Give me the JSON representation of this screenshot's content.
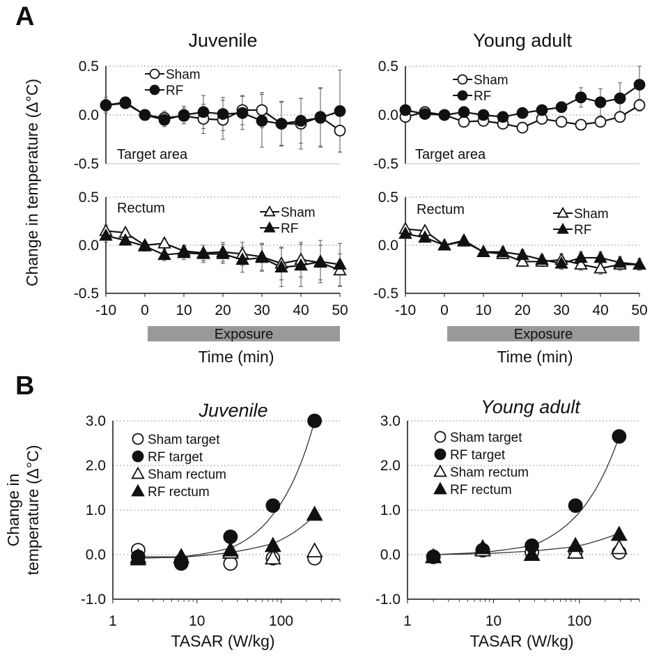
{
  "panel_labels": {
    "a": "A",
    "b": "B"
  },
  "shared": {
    "ylabel_a": "Change in temperature (Δ°C)",
    "ylabel_b_line1": "Change in",
    "ylabel_b_line2": "temperature (Δ°C)",
    "xlabel_a": "Time (min)",
    "xlabel_b": "TASAR (W/kg)",
    "exposure_label": "Exposure"
  },
  "chart_data": [
    {
      "id": "a-juvenile-target",
      "type": "line",
      "title": "Juvenile",
      "annotation": "Target area",
      "xlim": [
        -10,
        50
      ],
      "ylim": [
        -0.5,
        0.5
      ],
      "yticks": [
        "0.5",
        "0.0",
        "-0.5"
      ],
      "x": [
        -10,
        -5,
        0,
        5,
        10,
        15,
        20,
        25,
        30,
        35,
        40,
        45,
        50
      ],
      "series": [
        {
          "name": "Sham",
          "marker": "circle-open",
          "values": [
            0.1,
            0.13,
            0.0,
            -0.03,
            -0.01,
            -0.04,
            -0.05,
            0.05,
            0.05,
            -0.09,
            -0.09,
            -0.02,
            -0.16
          ],
          "errors": [
            0.08,
            0.05,
            0.05,
            0.07,
            0.08,
            0.15,
            0.2,
            0.15,
            0.18,
            0.22,
            0.26,
            0.3,
            0.22
          ]
        },
        {
          "name": "RF",
          "marker": "circle-filled",
          "values": [
            0.1,
            0.12,
            0.0,
            -0.05,
            0.0,
            0.03,
            0.01,
            0.02,
            -0.06,
            -0.09,
            -0.06,
            -0.03,
            0.04
          ],
          "errors": [
            0.06,
            0.04,
            0.04,
            0.07,
            0.09,
            0.17,
            0.17,
            0.17,
            0.27,
            0.23,
            0.23,
            0.3,
            0.42
          ]
        }
      ]
    },
    {
      "id": "a-young-target",
      "type": "line",
      "title": "Young adult",
      "annotation": "Target area",
      "xlim": [
        -10,
        50
      ],
      "ylim": [
        -0.5,
        0.5
      ],
      "yticks": [
        "0.5",
        "0.0",
        "-0.5"
      ],
      "x": [
        -10,
        -5,
        0,
        5,
        10,
        15,
        20,
        25,
        30,
        35,
        40,
        45,
        50
      ],
      "series": [
        {
          "name": "Sham",
          "marker": "circle-open",
          "values": [
            -0.02,
            0.03,
            0.0,
            -0.07,
            -0.06,
            -0.09,
            -0.13,
            -0.04,
            -0.07,
            -0.1,
            -0.07,
            -0.02,
            0.1
          ],
          "errors": [
            0.04,
            0.03,
            0.03,
            0.04,
            0.04,
            0.04,
            0.04,
            0.04,
            0.04,
            0.04,
            0.04,
            0.05,
            0.06
          ]
        },
        {
          "name": "RF",
          "marker": "circle-filled",
          "values": [
            0.05,
            0.01,
            0.0,
            0.03,
            0.0,
            -0.02,
            0.02,
            0.05,
            0.08,
            0.18,
            0.13,
            0.17,
            0.31
          ],
          "errors": [
            0.04,
            0.03,
            0.03,
            0.04,
            0.04,
            0.04,
            0.04,
            0.05,
            0.05,
            0.1,
            0.14,
            0.16,
            0.19
          ]
        }
      ]
    },
    {
      "id": "a-juvenile-rectum",
      "type": "line",
      "annotation": "Rectum",
      "xlim": [
        -10,
        50
      ],
      "ylim": [
        -0.5,
        0.5
      ],
      "yticks": [
        "0.5",
        "0.0",
        "-0.5"
      ],
      "xticks": [
        "-10",
        "0",
        "10",
        "20",
        "30",
        "40",
        "50"
      ],
      "x": [
        -10,
        -5,
        0,
        5,
        10,
        15,
        20,
        25,
        30,
        35,
        40,
        45,
        50
      ],
      "series": [
        {
          "name": "Sham",
          "marker": "triangle-open",
          "values": [
            0.15,
            0.13,
            0.0,
            0.02,
            -0.06,
            -0.08,
            -0.07,
            -0.09,
            -0.12,
            -0.19,
            -0.15,
            -0.18,
            -0.26
          ],
          "errors": [
            0.06,
            0.04,
            0.04,
            0.05,
            0.06,
            0.08,
            0.1,
            0.12,
            0.14,
            0.17,
            0.18,
            0.18,
            0.17
          ]
        },
        {
          "name": "RF",
          "marker": "triangle-filled",
          "values": [
            0.1,
            0.05,
            -0.01,
            -0.1,
            -0.08,
            -0.09,
            -0.09,
            -0.15,
            -0.13,
            -0.23,
            -0.21,
            -0.17,
            -0.2
          ],
          "errors": [
            0.07,
            0.05,
            0.05,
            0.06,
            0.07,
            0.09,
            0.1,
            0.13,
            0.14,
            0.2,
            0.22,
            0.22,
            0.22
          ]
        }
      ]
    },
    {
      "id": "a-young-rectum",
      "type": "line",
      "annotation": "Rectum",
      "xlim": [
        -10,
        50
      ],
      "ylim": [
        -0.5,
        0.5
      ],
      "yticks": [
        "0.5",
        "0.0",
        "-0.5"
      ],
      "xticks": [
        "-10",
        "0",
        "10",
        "20",
        "30",
        "40",
        "50"
      ],
      "x": [
        -10,
        -5,
        0,
        5,
        10,
        15,
        20,
        25,
        30,
        35,
        40,
        45,
        50
      ],
      "series": [
        {
          "name": "Sham",
          "marker": "triangle-open",
          "values": [
            0.17,
            0.15,
            0.0,
            0.05,
            -0.07,
            -0.09,
            -0.17,
            -0.17,
            -0.15,
            -0.2,
            -0.24,
            -0.2,
            -0.2
          ],
          "errors": [
            0.04,
            0.04,
            0.03,
            0.04,
            0.04,
            0.05,
            0.05,
            0.05,
            0.06,
            0.06,
            0.06,
            0.06,
            0.06
          ]
        },
        {
          "name": "RF",
          "marker": "triangle-filled",
          "values": [
            0.12,
            0.08,
            0.0,
            0.04,
            -0.07,
            -0.07,
            -0.1,
            -0.15,
            -0.19,
            -0.13,
            -0.13,
            -0.18,
            -0.2
          ],
          "errors": [
            0.04,
            0.04,
            0.03,
            0.04,
            0.04,
            0.05,
            0.05,
            0.05,
            0.06,
            0.06,
            0.06,
            0.06,
            0.06
          ]
        }
      ]
    },
    {
      "id": "b-juvenile",
      "type": "scatter",
      "title": "Juvenile",
      "xscale": "log",
      "xlim": [
        1,
        500
      ],
      "ylim": [
        -1.0,
        3.0
      ],
      "yticks": [
        "3.0",
        "2.0",
        "1.0",
        "0.0",
        "-1.0"
      ],
      "xticks": [
        "1",
        "10",
        "100"
      ],
      "series": [
        {
          "name": "Sham target",
          "marker": "circle-open",
          "x": [
            2,
            6.5,
            25,
            80,
            250
          ],
          "values": [
            0.1,
            -0.15,
            -0.2,
            -0.08,
            -0.08
          ]
        },
        {
          "name": "RF target",
          "marker": "circle-filled",
          "x": [
            2,
            6.5,
            25,
            80,
            250
          ],
          "values": [
            -0.05,
            -0.2,
            0.4,
            1.1,
            3.0
          ]
        },
        {
          "name": "Sham rectum",
          "marker": "triangle-open",
          "x": [
            2,
            6.5,
            25,
            80,
            250
          ],
          "values": [
            -0.05,
            -0.05,
            0.05,
            -0.08,
            0.08
          ]
        },
        {
          "name": "RF rectum",
          "marker": "triangle-filled",
          "x": [
            2,
            6.5,
            25,
            80,
            250
          ],
          "values": [
            -0.1,
            -0.05,
            0.1,
            0.2,
            0.9
          ]
        }
      ],
      "fits": [
        {
          "x": [
            2,
            6.5,
            25,
            80,
            250
          ],
          "values": [
            -0.05,
            -0.05,
            0.15,
            0.9,
            3.0
          ]
        },
        {
          "x": [
            2,
            6.5,
            25,
            80,
            250
          ],
          "values": [
            -0.08,
            -0.06,
            0.05,
            0.25,
            0.88
          ]
        }
      ]
    },
    {
      "id": "b-young",
      "type": "scatter",
      "title": "Young adult",
      "xscale": "log",
      "xlim": [
        1,
        500
      ],
      "ylim": [
        -1.0,
        3.0
      ],
      "yticks": [
        "3.0",
        "2.0",
        "1.0",
        "0.0",
        "-1.0"
      ],
      "xticks": [
        "1",
        "10",
        "100"
      ],
      "series": [
        {
          "name": "Sham target",
          "marker": "circle-open",
          "x": [
            2,
            7.5,
            28,
            90,
            290
          ],
          "values": [
            -0.05,
            0.1,
            0.05,
            0.08,
            0.05
          ]
        },
        {
          "name": "RF target",
          "marker": "circle-filled",
          "x": [
            2,
            7.5,
            28,
            90,
            290
          ],
          "values": [
            -0.05,
            0.1,
            0.2,
            1.1,
            2.65
          ]
        },
        {
          "name": "Sham rectum",
          "marker": "triangle-open",
          "x": [
            2,
            7.5,
            28,
            90,
            290
          ],
          "values": [
            -0.05,
            0.1,
            0.0,
            0.05,
            0.15
          ]
        },
        {
          "name": "RF rectum",
          "marker": "triangle-filled",
          "x": [
            2,
            7.5,
            28,
            90,
            290
          ],
          "values": [
            -0.05,
            0.15,
            0.0,
            0.2,
            0.45
          ]
        }
      ],
      "fits": [
        {
          "x": [
            2,
            7.5,
            28,
            90,
            290
          ],
          "values": [
            0.0,
            0.05,
            0.2,
            0.85,
            2.65
          ]
        },
        {
          "x": [
            2,
            7.5,
            28,
            90,
            290
          ],
          "values": [
            0.0,
            0.02,
            0.08,
            0.18,
            0.48
          ]
        }
      ]
    }
  ]
}
